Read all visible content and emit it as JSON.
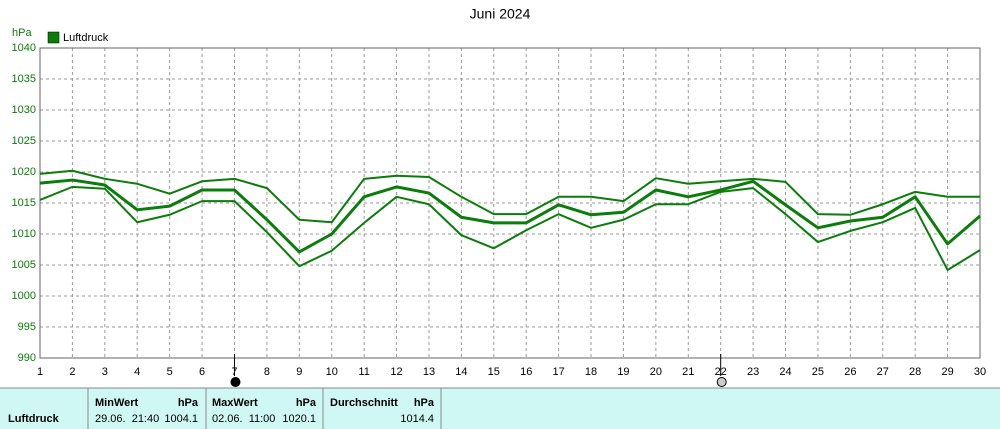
{
  "chart_data": {
    "type": "line",
    "title": "Juni 2024",
    "y_label": "hPa",
    "x": [
      1,
      2,
      3,
      4,
      5,
      6,
      7,
      8,
      9,
      10,
      11,
      12,
      13,
      14,
      15,
      16,
      17,
      18,
      19,
      20,
      21,
      22,
      23,
      24,
      25,
      26,
      27,
      28,
      29,
      30
    ],
    "series": [
      {
        "color": "#0a7d0a",
        "width": 2,
        "values": [
          1019.7,
          1020.2,
          1018.9,
          1018.1,
          1016.5,
          1018.5,
          1018.9,
          1017.4,
          1012.3,
          1011.9,
          1018.9,
          1019.4,
          1019.2,
          1016.0,
          1013.2,
          1013.2,
          1016.0,
          1016.0,
          1015.3,
          1019.0,
          1018.1,
          1018.5,
          1018.9,
          1018.4,
          1013.2,
          1013.1,
          1014.8,
          1016.8,
          1016.0,
          1016.0
        ]
      },
      {
        "name": "Luftdruck",
        "color": "#0a7d0a",
        "width": 3,
        "values": [
          1018.2,
          1018.7,
          1017.9,
          1013.9,
          1014.5,
          1017.1,
          1017.1,
          1012.3,
          1007.1,
          1010.0,
          1016.0,
          1017.6,
          1016.6,
          1012.7,
          1011.8,
          1011.8,
          1014.7,
          1013.1,
          1013.5,
          1017.1,
          1016.0,
          1017.1,
          1018.5,
          1014.7,
          1011.0,
          1012.1,
          1012.7,
          1016.0,
          1008.4,
          1012.9
        ]
      },
      {
        "color": "#0a7d0a",
        "width": 2,
        "values": [
          1015.5,
          1017.6,
          1017.3,
          1011.9,
          1013.1,
          1015.3,
          1015.3,
          1010.3,
          1004.8,
          1007.3,
          1011.8,
          1016.0,
          1014.8,
          1009.8,
          1007.7,
          1010.6,
          1013.2,
          1011.0,
          1012.3,
          1014.8,
          1014.8,
          1016.8,
          1017.4,
          1013.2,
          1008.7,
          1010.5,
          1011.9,
          1014.2,
          1004.2,
          1007.4
        ]
      }
    ],
    "xlim": [
      1,
      30
    ],
    "xticks": [
      1,
      2,
      3,
      4,
      5,
      6,
      7,
      8,
      9,
      10,
      11,
      12,
      13,
      14,
      15,
      16,
      17,
      18,
      19,
      20,
      21,
      22,
      23,
      24,
      25,
      26,
      27,
      28,
      29,
      30
    ],
    "ylim": [
      990,
      1040
    ],
    "yticks": [
      990,
      995,
      1000,
      1005,
      1010,
      1015,
      1020,
      1025,
      1030,
      1035,
      1040
    ],
    "grid": true,
    "legend": "upper-left",
    "marker_days": [
      7,
      22
    ]
  },
  "table": {
    "row_label": "Luftdruck",
    "columns": [
      {
        "title": "MinWert",
        "unit": "hPa",
        "time": "29.06.  21:40",
        "value": "1004.1"
      },
      {
        "title": "MaxWert",
        "unit": "hPa",
        "time": "02.06.  11:00",
        "value": "1020.1"
      },
      {
        "title": "Durchschnitt",
        "unit": "hPa",
        "value": "1014.4"
      }
    ]
  }
}
